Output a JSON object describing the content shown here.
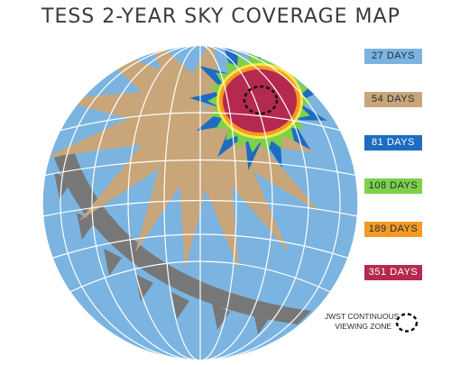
{
  "title": "TESS 2-YEAR SKY COVERAGE MAP",
  "colors": {
    "ocean": "#7bb4e0",
    "tan": "#c8a67a",
    "blue81": "#1e6cc0",
    "green108": "#7dd14a",
    "yellow": "#f3e84a",
    "orange189": "#f49a23",
    "red351": "#b4294e",
    "gray": "#777777",
    "grid": "#ffffff"
  },
  "legend": [
    {
      "label": "27 DAYS",
      "color": "#7bb4e0",
      "dark": false
    },
    {
      "label": "54 DAYS",
      "color": "#c8a67a",
      "dark": false
    },
    {
      "label": "81 DAYS",
      "color": "#1e6cc0",
      "dark": true
    },
    {
      "label": "108 DAYS",
      "color": "#7dd14a",
      "dark": false
    },
    {
      "label": "189 DAYS",
      "color": "#f49a23",
      "dark": false
    },
    {
      "label": "351 DAYS",
      "color": "#b4294e",
      "dark": true
    }
  ],
  "jwst": {
    "line1": "JWST CONTINUOUS",
    "line2": "VIEWING ZONE",
    "icon": "dashed-circle-icon"
  }
}
